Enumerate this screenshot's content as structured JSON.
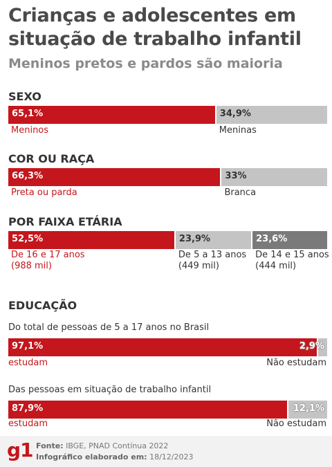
{
  "title": "Crianças e adolescentes em situação de trabalho infantil",
  "subtitle": "Meninos pretos e pardos são maioria",
  "colors": {
    "red": "#c4161c",
    "gray_light": "#c4c4c4",
    "gray_dark": "#7a7a7a"
  },
  "chart_data": [
    {
      "type": "bar",
      "title": "SEXO",
      "categories": [
        "Meninos",
        "Meninas"
      ],
      "values": [
        65.1,
        34.9
      ],
      "value_labels": [
        "65,1%",
        "34,9%"
      ]
    },
    {
      "type": "bar",
      "title": "COR OU RAÇA",
      "categories": [
        "Preta ou parda",
        "Branca"
      ],
      "values": [
        66.3,
        33
      ],
      "value_labels": [
        "66,3%",
        "33%"
      ]
    },
    {
      "type": "bar",
      "title": "POR FAIXA ETÁRIA",
      "categories": [
        "De 16 e 17 anos",
        "De 5 a 13 anos",
        "De 14 e 15 anos"
      ],
      "details": [
        "(988 mil)",
        "(449 mil)",
        "(444 mil)"
      ],
      "values": [
        52.5,
        23.9,
        23.6
      ],
      "value_labels": [
        "52,5%",
        "23,9%",
        "23,6%"
      ]
    },
    {
      "type": "bar",
      "title": "EDUCAÇÃO",
      "subtitle": "Do total de pessoas de 5 a 17 anos no Brasil",
      "categories": [
        "estudam",
        "Não estudam"
      ],
      "values": [
        97.1,
        2.9
      ],
      "value_labels": [
        "97,1%",
        "2,9%"
      ]
    },
    {
      "type": "bar",
      "subtitle": "Das pessoas em situação de trabalho infantil",
      "categories": [
        "estudam",
        "Não estudam"
      ],
      "values": [
        87.9,
        12.1
      ],
      "value_labels": [
        "87,9%",
        "12,1%"
      ]
    }
  ],
  "footer": {
    "logo": "g1",
    "source_label": "Fonte:",
    "source_value": "IBGE, PNAD Contínua 2022",
    "date_label": "Infográfico elaborado em:",
    "date_value": "18/12/2023"
  }
}
